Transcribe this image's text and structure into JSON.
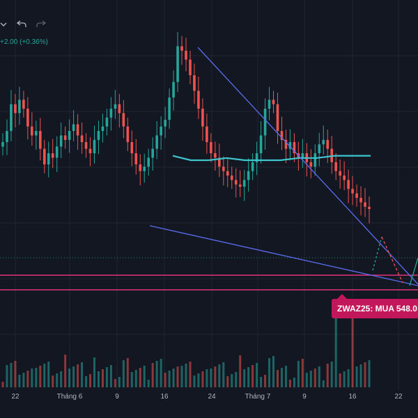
{
  "toolbar": {
    "chevron_icon": "chevron-down-icon",
    "undo_icon": "undo-icon",
    "redo_icon": "redo-icon"
  },
  "header": {
    "price_change": "+2.00 (+0.36%)"
  },
  "annotation": {
    "label": "ZWAZ25: MUA 548.0"
  },
  "colors": {
    "background": "#131722",
    "up": "#26a69a",
    "down": "#ef5350",
    "trendline": "#5b6cf0",
    "moving_average": "#3ec6d0",
    "support_line": "#e0337a",
    "badge": "#c2185b",
    "projection_up": "#26a69a",
    "projection_down": "#ef5350"
  },
  "chart_data": {
    "type": "candlestick",
    "x_tick_labels": [
      "22",
      "Tháng 6",
      "9",
      "16",
      "24",
      "Tháng 7",
      "9",
      "16",
      "22"
    ],
    "candles_close_shape": [
      0.55,
      0.6,
      0.72,
      0.68,
      0.74,
      0.7,
      0.62,
      0.58,
      0.6,
      0.52,
      0.45,
      0.5,
      0.48,
      0.53,
      0.58,
      0.56,
      0.6,
      0.63,
      0.58,
      0.55,
      0.52,
      0.5,
      0.56,
      0.6,
      0.62,
      0.66,
      0.7,
      0.72,
      0.68,
      0.62,
      0.55,
      0.5,
      0.45,
      0.42,
      0.44,
      0.48,
      0.52,
      0.58,
      0.62,
      0.65,
      0.75,
      0.82,
      0.98,
      0.96,
      0.92,
      0.85,
      0.78,
      0.7,
      0.62,
      0.55,
      0.5,
      0.48,
      0.44,
      0.42,
      0.4,
      0.38,
      0.36,
      0.35,
      0.38,
      0.42,
      0.46,
      0.5,
      0.58,
      0.7,
      0.74,
      0.72,
      0.6,
      0.56,
      0.52,
      0.55,
      0.5,
      0.48,
      0.5,
      0.46,
      0.44,
      0.5,
      0.54,
      0.56,
      0.52,
      0.46,
      0.42,
      0.4,
      0.38,
      0.34,
      0.32,
      0.3,
      0.28,
      0.26,
      0.25
    ],
    "moving_average_shape": [
      0.52,
      0.5,
      0.5,
      0.51,
      0.5,
      0.5,
      0.5,
      0.51,
      0.51,
      0.52,
      0.52,
      0.52
    ],
    "annotations": [
      {
        "text": "ZWAZ25: MUA 548.0"
      }
    ],
    "grid": true
  }
}
